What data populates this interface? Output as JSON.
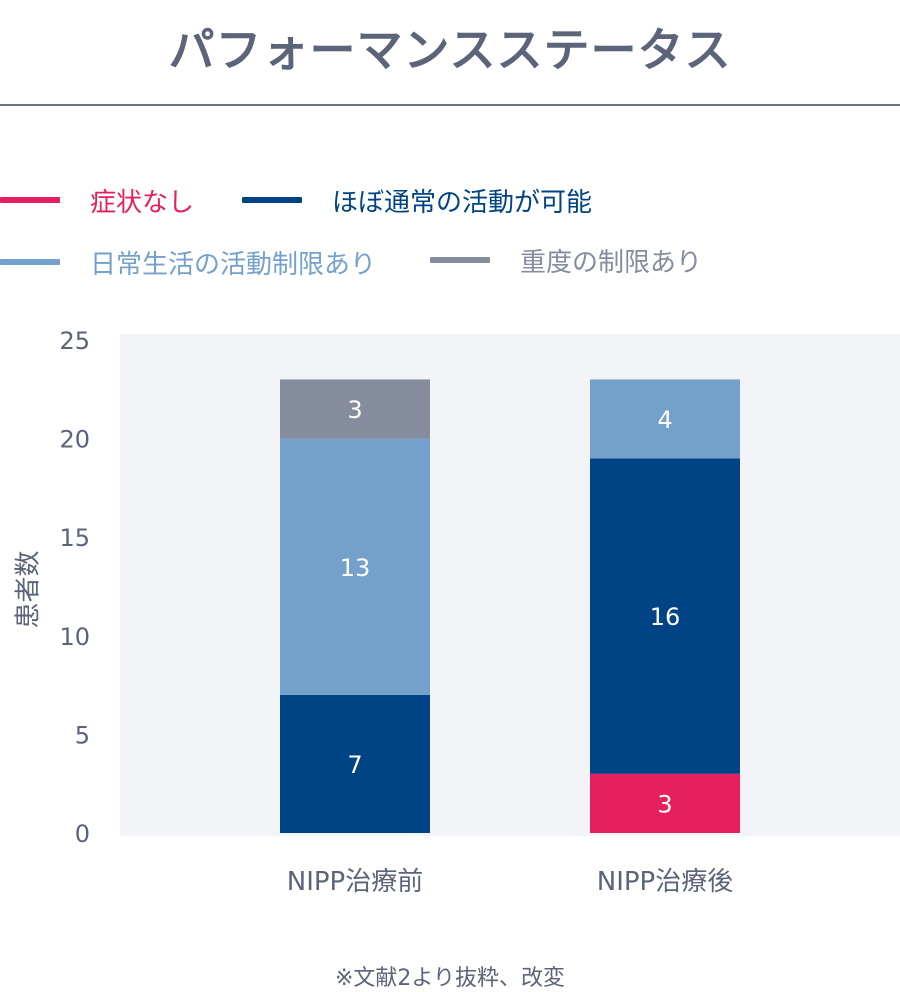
{
  "title": "パフォーマンスステータス",
  "footnote": "※文献2より抜粋、改変",
  "legend": [
    {
      "label": "症状なし",
      "color": "#e61f5e",
      "label_color": "#e61f5e"
    },
    {
      "label": "ほぼ通常の活動が可能",
      "color": "#004485",
      "label_color": "#004485"
    },
    {
      "label": "日常生活の活動制限あり",
      "color": "#74a1cc",
      "label_color": "#74a1cc"
    },
    {
      "label": "重度の制限あり",
      "color": "#858c9e",
      "label_color": "#858c9e"
    }
  ],
  "chart_data": {
    "type": "bar",
    "stacked": true,
    "categories": [
      "NIPP治療前",
      "NIPP治療後"
    ],
    "series": [
      {
        "name": "症状なし",
        "color": "#e61f5e",
        "values": [
          0,
          3
        ]
      },
      {
        "name": "ほぼ通常の活動が可能",
        "color": "#004485",
        "values": [
          7,
          16
        ]
      },
      {
        "name": "日常生活の活動制限あり",
        "color": "#74a1cc",
        "values": [
          13,
          4
        ]
      },
      {
        "name": "重度の制限あり",
        "color": "#858c9e",
        "values": [
          3,
          0
        ]
      }
    ],
    "ylabel": "患者数",
    "ylim": [
      0,
      25
    ],
    "yticks": [
      0,
      5,
      10,
      15,
      20,
      25
    ],
    "grid": false,
    "legend_position": "top-left",
    "plot_background": "#f3f4f8",
    "tick_color": "#5b6478",
    "label_color": "#ffffff"
  }
}
